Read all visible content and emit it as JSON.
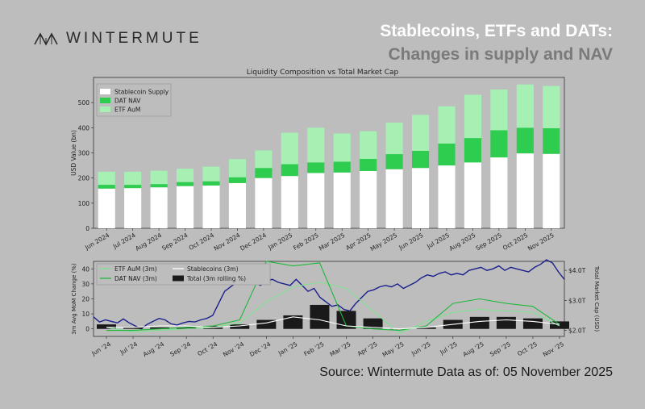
{
  "header": {
    "brand": "WINTERMUTE",
    "headline_line1": "Stablecoins, ETFs and DATs:",
    "headline_line2": "Changes in supply and NAV"
  },
  "footer": {
    "source": "Source: Wintermute  Data as of: 05 November 2025"
  },
  "colors": {
    "stablecoin": "#ffffff",
    "dat": "#2ecc4f",
    "etf": "#a6f0b4",
    "total_bar": "#1a1a1a",
    "market_cap": "#1a1f8c"
  },
  "chart_data": [
    {
      "type": "bar",
      "stacked": true,
      "title": "Liquidity Composition vs Total Market Cap",
      "ylabel": "USD Value (bn)",
      "xlabel": "",
      "ylim": [
        0,
        600
      ],
      "yticks": [
        0,
        100,
        200,
        300,
        400,
        500
      ],
      "grid": false,
      "legend_position": "top-left",
      "categories": [
        "Jun 2024",
        "Jul 2024",
        "Aug 2024",
        "Sep 2024",
        "Oct 2024",
        "Nov 2024",
        "Dec 2024",
        "Jan 2025",
        "Feb 2025",
        "Mar 2025",
        "Apr 2025",
        "May 2025",
        "Jun 2025",
        "Jul 2025",
        "Aug 2025",
        "Sep 2025",
        "Oct 2025",
        "Nov 2025"
      ],
      "series": [
        {
          "name": "Stablecoin Supply",
          "values": [
            158,
            160,
            163,
            168,
            170,
            180,
            200,
            208,
            220,
            222,
            228,
            235,
            240,
            250,
            262,
            282,
            298,
            296
          ]
        },
        {
          "name": "DAT NAV",
          "values": [
            15,
            13,
            13,
            16,
            17,
            23,
            40,
            47,
            42,
            43,
            48,
            60,
            68,
            87,
            97,
            108,
            102,
            102
          ]
        },
        {
          "name": "ETF AuM",
          "values": [
            52,
            52,
            53,
            53,
            58,
            72,
            70,
            125,
            138,
            112,
            110,
            125,
            143,
            148,
            172,
            162,
            172,
            168
          ]
        }
      ]
    },
    {
      "type": "bar+line",
      "ylabel": "3m Avg MoM Change (%)",
      "y2label": "Total Market Cap (USD)",
      "ylim": [
        -5,
        45
      ],
      "yticks": [
        0,
        10,
        20,
        30,
        40
      ],
      "y2ticks": [
        "$2.0T",
        "$3.0T",
        "$4.0T"
      ],
      "y2ticks_values": [
        2.0,
        3.0,
        4.0
      ],
      "y2lim": [
        1.8,
        4.3
      ],
      "legend_position": "top-left",
      "categories": [
        "Jun '24",
        "Jul '24",
        "Aug '24",
        "Sep '24",
        "Oct '24",
        "Nov '24",
        "Dec '24",
        "Jan '25",
        "Feb '25",
        "Mar '25",
        "Apr '25",
        "May '25",
        "Jun '25",
        "Jul '25",
        "Aug '25",
        "Sep '25",
        "Oct '25",
        "Nov '25"
      ],
      "bars": {
        "name": "Total (3m rolling %)",
        "values": [
          3,
          1,
          1,
          1,
          2,
          3,
          6,
          9,
          16,
          12,
          7,
          0,
          1,
          6,
          8,
          8,
          7,
          5
        ]
      },
      "series": [
        {
          "name": "ETF AuM (3m)",
          "values": [
            1,
            -2,
            -1,
            0,
            1,
            4,
            18,
            28,
            31,
            27,
            12,
            -3,
            5,
            11,
            13,
            12,
            11,
            2
          ]
        },
        {
          "name": "DAT NAV (3m)",
          "values": [
            -1,
            -1,
            0,
            1,
            2,
            6,
            45,
            42,
            44,
            2,
            0,
            -1,
            2,
            17,
            20,
            17,
            15,
            3
          ]
        },
        {
          "name": "Stablecoins (3m)",
          "values": [
            1,
            1,
            2,
            2,
            1,
            2,
            4,
            8,
            6,
            2,
            1,
            0,
            1,
            3,
            5,
            6,
            5,
            3
          ]
        }
      ],
      "market_cap": {
        "name": "Total Market Cap",
        "x_start": "Jun '24",
        "x_end": "Nov '25",
        "values": [
          2.45,
          2.28,
          2.35,
          2.3,
          2.25,
          2.38,
          2.25,
          2.15,
          2.05,
          2.2,
          2.3,
          2.4,
          2.35,
          2.22,
          2.18,
          2.25,
          2.3,
          2.28,
          2.35,
          2.4,
          2.5,
          2.9,
          3.3,
          3.45,
          3.6,
          3.75,
          3.55,
          3.6,
          3.5,
          3.65,
          3.7,
          3.6,
          3.55,
          3.5,
          3.7,
          3.5,
          3.3,
          3.4,
          3.1,
          2.95,
          2.8,
          2.85,
          2.7,
          2.65,
          2.9,
          3.1,
          3.3,
          3.35,
          3.45,
          3.5,
          3.45,
          3.55,
          3.4,
          3.5,
          3.6,
          3.75,
          3.85,
          3.8,
          3.9,
          3.95,
          3.85,
          3.9,
          3.85,
          4.0,
          4.05,
          4.1,
          4.0,
          4.05,
          4.15,
          4.0,
          4.1,
          4.05,
          4.0,
          3.95,
          4.1,
          4.2,
          4.35,
          4.25,
          3.95,
          3.7
        ]
      }
    }
  ]
}
